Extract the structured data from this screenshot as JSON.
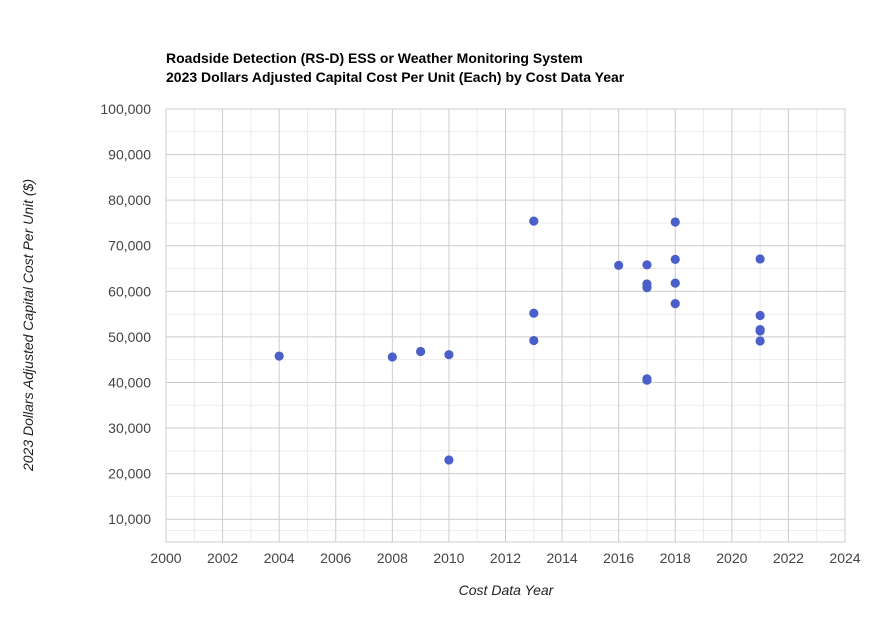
{
  "chart_data": {
    "type": "scatter",
    "title": "Roadside Detection (RS-D) ESS or Weather Monitoring System",
    "subtitle": "2023 Dollars Adjusted Capital Cost Per Unit (Each) by Cost Data Year",
    "xlabel": "Cost Data Year",
    "ylabel": "2023 Dollars Adjusted Capital Cost Per Unit ($)",
    "xlim": [
      2000,
      2024
    ],
    "ylim": [
      5000,
      100000
    ],
    "xticks": [
      2000,
      2002,
      2004,
      2006,
      2008,
      2010,
      2012,
      2014,
      2016,
      2018,
      2020,
      2022,
      2024
    ],
    "xtick_labels": [
      "2000",
      "2002",
      "2004",
      "2006",
      "2008",
      "2010",
      "2012",
      "2014",
      "2016",
      "2018",
      "2020",
      "2022",
      "2024"
    ],
    "yticks": [
      10000,
      20000,
      30000,
      40000,
      50000,
      60000,
      70000,
      80000,
      90000,
      100000
    ],
    "ytick_labels": [
      "10,000",
      "20,000",
      "30,000",
      "40,000",
      "50,000",
      "60,000",
      "70,000",
      "80,000",
      "90,000",
      "100,000"
    ],
    "grid": true,
    "legend": "none",
    "marker_color": "#4a5fc9",
    "points": [
      {
        "x": 2004,
        "y": 45800
      },
      {
        "x": 2008,
        "y": 45600
      },
      {
        "x": 2009,
        "y": 46800
      },
      {
        "x": 2010,
        "y": 46100
      },
      {
        "x": 2010,
        "y": 23000
      },
      {
        "x": 2013,
        "y": 75400
      },
      {
        "x": 2013,
        "y": 55200
      },
      {
        "x": 2013,
        "y": 49200
      },
      {
        "x": 2016,
        "y": 65700
      },
      {
        "x": 2017,
        "y": 65800
      },
      {
        "x": 2017,
        "y": 61600
      },
      {
        "x": 2017,
        "y": 60800
      },
      {
        "x": 2017,
        "y": 40800
      },
      {
        "x": 2017,
        "y": 40500
      },
      {
        "x": 2018,
        "y": 75200
      },
      {
        "x": 2018,
        "y": 67000
      },
      {
        "x": 2018,
        "y": 61800
      },
      {
        "x": 2018,
        "y": 57300
      },
      {
        "x": 2021,
        "y": 67100
      },
      {
        "x": 2021,
        "y": 54700
      },
      {
        "x": 2021,
        "y": 51600
      },
      {
        "x": 2021,
        "y": 51300
      },
      {
        "x": 2021,
        "y": 49100
      }
    ]
  }
}
